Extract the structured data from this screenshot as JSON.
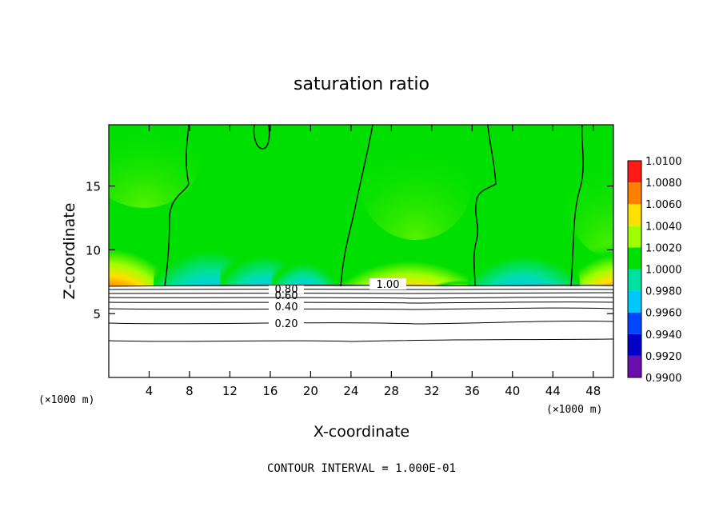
{
  "chart_data": {
    "type": "contour",
    "title": "saturation ratio",
    "xlabel": "X-coordinate",
    "ylabel": "Z-coordinate",
    "x_unit": "(×1000 m)",
    "y_unit": "(×1000 m)",
    "footer": "CONTOUR INTERVAL = 1.000E-01",
    "xlim": [
      0,
      50
    ],
    "ylim": [
      0,
      19.8
    ],
    "x_ticks": [
      4,
      8,
      12,
      16,
      20,
      24,
      28,
      32,
      36,
      40,
      44,
      48
    ],
    "x_tick_labels": [
      "4",
      "8",
      "12",
      "16",
      "20",
      "24",
      "28",
      "32",
      "36",
      "40",
      "44",
      "48"
    ],
    "y_ticks": [
      5,
      10,
      15
    ],
    "y_tick_labels": [
      "5",
      "10",
      "15"
    ],
    "colorbar": {
      "levels": [
        0.99,
        0.992,
        0.994,
        0.996,
        0.998,
        1.0,
        1.002,
        1.004,
        1.006,
        1.008,
        1.01
      ],
      "labels": [
        "0.9900",
        "0.9920",
        "0.9940",
        "0.9960",
        "0.9980",
        "1.0000",
        "1.0020",
        "1.0040",
        "1.0060",
        "1.0080",
        "1.0100"
      ],
      "colors": [
        "#6a0dad",
        "#0000c8",
        "#0046ff",
        "#00c8ff",
        "#00e0a0",
        "#00e000",
        "#a0ff00",
        "#ffe000",
        "#ff8000",
        "#ff1a1a",
        "#ff9090"
      ]
    },
    "contour_labels": [
      {
        "text": "1.00",
        "x": 26.2,
        "y": 7.2
      },
      {
        "text": "0.80",
        "x": 16.5,
        "y": 6.8
      },
      {
        "text": "0.60",
        "x": 16.5,
        "y": 6.2
      },
      {
        "text": "0.40",
        "x": 16.5,
        "y": 5.5
      },
      {
        "text": "0.20",
        "x": 16.5,
        "y": 4.2
      }
    ],
    "colors": {
      "background": "#ffffff",
      "line": "#000000"
    }
  }
}
